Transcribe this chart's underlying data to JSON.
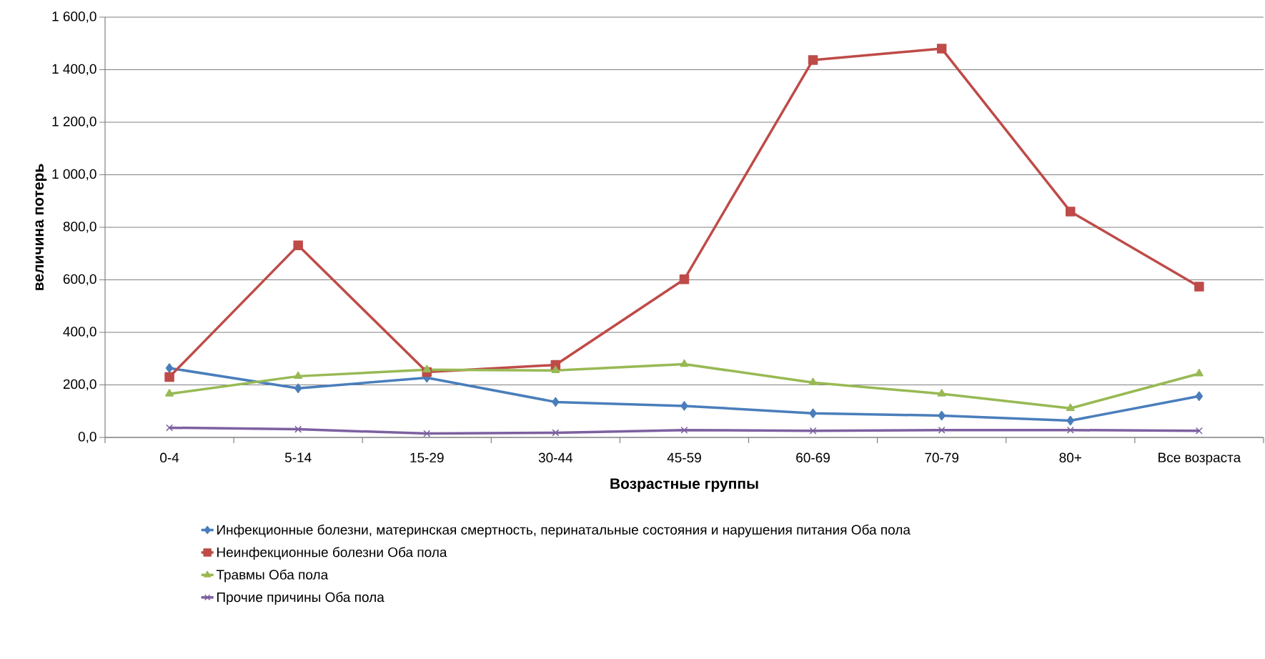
{
  "chart_data": {
    "type": "line",
    "xlabel": "Возрастные группы",
    "ylabel": "величина потерь",
    "categories": [
      "0-4",
      "5-14",
      "15-29",
      "30-44",
      "45-59",
      "60-69",
      "70-79",
      "80+",
      "Все возраста"
    ],
    "series": [
      {
        "name": "Инфекционные болезни, материнская смертность, перинатальные состояния и нарушения питания Оба пола",
        "color": "#4a7ebb",
        "marker": "diamond",
        "values": [
          264,
          187,
          227,
          135,
          120,
          92,
          83,
          64,
          157
        ]
      },
      {
        "name": "Неинфекционные болезни Оба пола",
        "color": "#be4b48",
        "marker": "square",
        "values": [
          230,
          731,
          249,
          276,
          602,
          1437,
          1480,
          860,
          574
        ]
      },
      {
        "name": "Травмы Оба пола",
        "color": "#98b954",
        "marker": "triangle",
        "values": [
          166,
          233,
          258,
          255,
          279,
          209,
          166,
          111,
          243
        ]
      },
      {
        "name": "Прочие причины Оба пола",
        "color": "#7d60a0",
        "marker": "cross",
        "values": [
          37,
          31,
          15,
          18,
          28,
          25,
          28,
          28,
          25
        ]
      }
    ],
    "ylim": [
      0,
      1600
    ],
    "yticks": [
      {
        "value": 0,
        "label": "0,0"
      },
      {
        "value": 200,
        "label": "200,0"
      },
      {
        "value": 400,
        "label": "400,0"
      },
      {
        "value": 600,
        "label": "600,0"
      },
      {
        "value": 800,
        "label": "800,0"
      },
      {
        "value": 1000,
        "label": "1 000,0"
      },
      {
        "value": 1200,
        "label": "1 200,0"
      },
      {
        "value": 1400,
        "label": "1 400,0"
      },
      {
        "value": 1600,
        "label": "1 600,0"
      }
    ],
    "grid": "y",
    "legend": "bottom",
    "line_style": "solid"
  }
}
